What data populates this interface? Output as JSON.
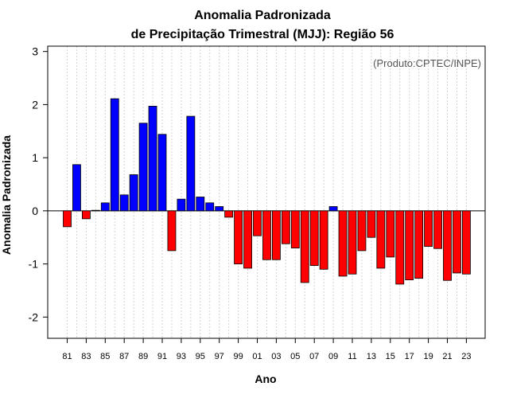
{
  "chart_data": {
    "type": "bar",
    "title": "Anomalia Padronizada",
    "subtitle": "de Precipitação Trimestral (MJJ): Região 56",
    "xlabel": "Ano",
    "ylabel": "Anomalia Padronizada",
    "annotation": "(Produto:CPTEC/INPE)",
    "ylim": [
      -2.4,
      3.1
    ],
    "yticks": [
      -2,
      -1,
      0,
      1,
      2,
      3
    ],
    "grid": true,
    "positive_color": "#0000ff",
    "negative_color": "#ff0000",
    "categories": [
      "81",
      "82",
      "83",
      "84",
      "85",
      "86",
      "87",
      "88",
      "89",
      "90",
      "91",
      "92",
      "93",
      "94",
      "95",
      "96",
      "97",
      "98",
      "99",
      "00",
      "01",
      "02",
      "03",
      "04",
      "05",
      "06",
      "07",
      "08",
      "09",
      "10",
      "11",
      "12",
      "13",
      "14",
      "15",
      "16",
      "17",
      "18",
      "19",
      "20",
      "21",
      "22",
      "23"
    ],
    "tick_labels": [
      "81",
      "83",
      "85",
      "87",
      "89",
      "91",
      "93",
      "95",
      "97",
      "99",
      "01",
      "03",
      "05",
      "07",
      "09",
      "11",
      "13",
      "15",
      "17",
      "19",
      "21",
      "23"
    ],
    "values": [
      -0.3,
      0.87,
      -0.15,
      0.01,
      0.15,
      2.11,
      0.3,
      0.68,
      1.65,
      1.97,
      1.44,
      -0.75,
      0.22,
      1.78,
      0.26,
      0.15,
      0.08,
      -0.12,
      -1.0,
      -1.08,
      -0.47,
      -0.92,
      -0.92,
      -0.62,
      -0.7,
      -1.35,
      -1.03,
      -1.1,
      0.08,
      -1.23,
      -1.19,
      -0.75,
      -0.5,
      -1.08,
      -0.87,
      -1.38,
      -1.3,
      -1.27,
      -0.67,
      -0.71,
      -1.31,
      -1.17,
      -1.19
    ]
  }
}
